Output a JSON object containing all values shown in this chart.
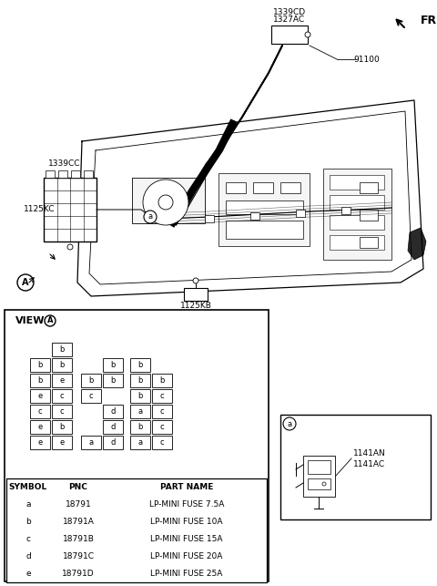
{
  "bg_color": "#ffffff",
  "fig_width": 4.8,
  "fig_height": 6.43,
  "fr_label": "FR.",
  "label_1339cd": "1339CD",
  "label_1327ac": "1327AC",
  "label_91100": "91100",
  "label_1339cc": "1339CC",
  "label_1125kc": "1125KC",
  "label_1125kb": "1125KB",
  "label_1141an": "1141AN",
  "label_1141ac": "1141AC",
  "view_label": "VIEW",
  "circle_a_label": "A",
  "small_a_label": "a",
  "table_headers": [
    "SYMBOL",
    "PNC",
    "PART NAME"
  ],
  "table_rows": [
    [
      "a",
      "18791",
      "LP-MINI FUSE 7.5A"
    ],
    [
      "b",
      "18791A",
      "LP-MINI FUSE 10A"
    ],
    [
      "c",
      "18791B",
      "LP-MINI FUSE 15A"
    ],
    [
      "d",
      "18791C",
      "LP-MINI FUSE 20A"
    ],
    [
      "e",
      "18791D",
      "LP-MINI FUSE 25A"
    ]
  ],
  "fuse_layout": [
    [
      null,
      "b",
      null,
      null,
      null,
      null
    ],
    [
      "b",
      "b",
      null,
      "b",
      "b",
      null
    ],
    [
      "b",
      "e",
      "b",
      "b",
      "b",
      "b"
    ],
    [
      "e",
      "c",
      "c",
      null,
      "b",
      "c"
    ],
    [
      "c",
      "c",
      null,
      "d",
      "a",
      "c"
    ],
    [
      "e",
      "b",
      null,
      "d",
      "b",
      "c"
    ],
    [
      "e",
      "e",
      "a",
      "d",
      "a",
      "c"
    ]
  ]
}
